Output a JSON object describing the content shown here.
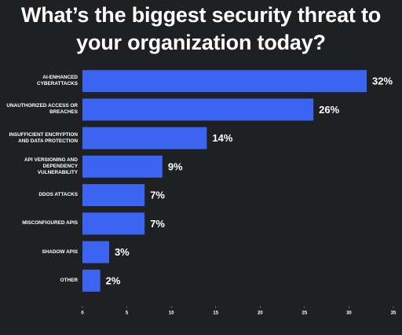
{
  "chart_data": {
    "type": "bar",
    "orientation": "horizontal",
    "title": "What’s the biggest security threat to your organization today?",
    "categories": [
      "AI-ENHANCED CYBERATTACKS",
      "UNAUTHORIZED ACCESS OR BREACHES",
      "INSUFFICIENT ENCRYPTION AND DATA PROTECTION",
      "API VERSIONING AND DEPENDENCY VULNERABILITY",
      "DDOS ATTACKS",
      "MISCONFIGURED APIS",
      "SHADOW APIS",
      "OTHER"
    ],
    "values": [
      32,
      26,
      14,
      9,
      7,
      7,
      3,
      2
    ],
    "value_labels": [
      "32%",
      "26%",
      "14%",
      "9%",
      "7%",
      "7%",
      "3%",
      "2%"
    ],
    "color": "#3c64f2",
    "xlim": [
      0,
      35
    ],
    "xticks": [
      0,
      5,
      10,
      15,
      20,
      25,
      30,
      35
    ]
  }
}
